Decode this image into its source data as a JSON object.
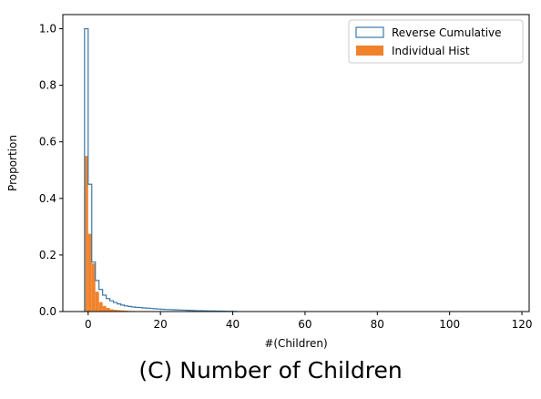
{
  "caption": "(C) Number of Children",
  "chart_data": {
    "type": "histogram",
    "xlabel": "#(Children)",
    "ylabel": "Proportion",
    "xlim": [
      -7,
      122
    ],
    "ylim": [
      0,
      1.05
    ],
    "x_ticks": [
      0,
      20,
      40,
      60,
      80,
      100,
      120
    ],
    "y_ticks": [
      0.0,
      0.2,
      0.4,
      0.6,
      0.8,
      1.0
    ],
    "x_tick_labels": [
      "0",
      "20",
      "40",
      "60",
      "80",
      "100",
      "120"
    ],
    "y_tick_labels": [
      "0.0",
      "0.2",
      "0.4",
      "0.6",
      "0.8",
      "1.0"
    ],
    "bin_width": 1,
    "legend_position": "upper right",
    "series": [
      {
        "name": "Reverse Cumulative",
        "kind": "step",
        "color": "#3c78a8",
        "bin_starts": [
          -1,
          0,
          1,
          2,
          3,
          4,
          5,
          6,
          7,
          8,
          9,
          10,
          11,
          12,
          13,
          14,
          15,
          16,
          17,
          18,
          19,
          20,
          21,
          22,
          23,
          24,
          25,
          26,
          27,
          28,
          29,
          30,
          31,
          32,
          33,
          34,
          35,
          36,
          37,
          38,
          39,
          40
        ],
        "values": [
          1.0,
          0.45,
          0.175,
          0.11,
          0.078,
          0.058,
          0.046,
          0.038,
          0.032,
          0.027,
          0.023,
          0.02,
          0.018,
          0.016,
          0.015,
          0.014,
          0.013,
          0.012,
          0.011,
          0.01,
          0.009,
          0.008,
          0.0075,
          0.007,
          0.0065,
          0.006,
          0.0055,
          0.005,
          0.0045,
          0.004,
          0.0035,
          0.003,
          0.0028,
          0.0025,
          0.0022,
          0.002,
          0.0018,
          0.0015,
          0.0012,
          0.001,
          0.0008,
          0.0005
        ]
      },
      {
        "name": "Individual Hist",
        "kind": "bar",
        "color": "#f0822c",
        "bin_starts": [
          -1,
          0,
          1,
          2,
          3,
          4,
          5,
          6,
          7,
          8,
          9,
          10,
          11,
          12
        ],
        "values": [
          0.55,
          0.275,
          0.17,
          0.07,
          0.033,
          0.02,
          0.013,
          0.008,
          0.006,
          0.005,
          0.004,
          0.003,
          0.002,
          0.002
        ]
      }
    ]
  }
}
